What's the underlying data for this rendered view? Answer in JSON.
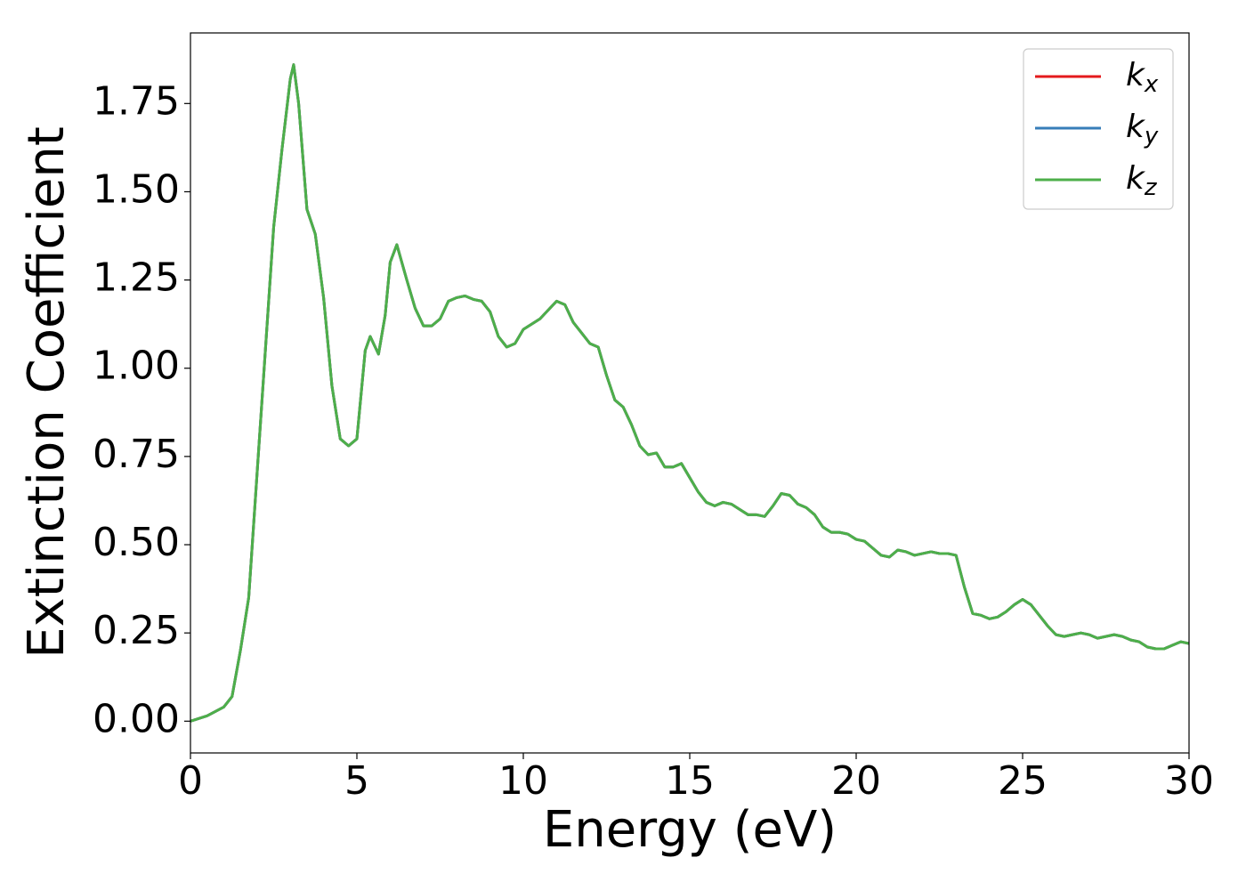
{
  "chart_data": {
    "type": "line",
    "xlabel": "Energy (eV)",
    "ylabel": "Extinction Coefficient",
    "x": [
      0,
      0.5,
      1.0,
      1.25,
      1.5,
      1.75,
      2.0,
      2.25,
      2.5,
      2.75,
      3.0,
      3.1,
      3.25,
      3.5,
      3.75,
      4.0,
      4.25,
      4.5,
      4.75,
      5.0,
      5.25,
      5.4,
      5.5,
      5.65,
      5.85,
      6.0,
      6.2,
      6.5,
      6.75,
      7.0,
      7.25,
      7.5,
      7.75,
      8.0,
      8.25,
      8.5,
      8.75,
      9.0,
      9.25,
      9.5,
      9.75,
      10.0,
      10.5,
      11.0,
      11.25,
      11.5,
      11.75,
      12.0,
      12.25,
      12.5,
      12.75,
      13.0,
      13.25,
      13.5,
      13.75,
      14.0,
      14.25,
      14.5,
      14.75,
      15.0,
      15.25,
      15.5,
      15.75,
      16.0,
      16.25,
      16.5,
      16.75,
      17.0,
      17.25,
      17.5,
      17.75,
      18.0,
      18.25,
      18.5,
      18.75,
      19.0,
      19.25,
      19.5,
      19.75,
      20.0,
      20.25,
      20.5,
      20.75,
      21.0,
      21.25,
      21.5,
      21.75,
      22.0,
      22.25,
      22.5,
      22.75,
      23.0,
      23.25,
      23.5,
      23.75,
      24.0,
      24.25,
      24.5,
      24.75,
      25.0,
      25.25,
      25.5,
      25.75,
      26.0,
      26.25,
      26.5,
      26.75,
      27.0,
      27.25,
      27.5,
      27.75,
      28.0,
      28.25,
      28.5,
      28.75,
      29.0,
      29.25,
      29.5,
      29.75,
      30.0
    ],
    "series": [
      {
        "name": "kx",
        "color": "#e41a1c",
        "values": [
          0.0,
          0.015,
          0.04,
          0.07,
          0.2,
          0.35,
          0.7,
          1.05,
          1.4,
          1.62,
          1.82,
          1.86,
          1.75,
          1.45,
          1.38,
          1.2,
          0.95,
          0.8,
          0.78,
          0.8,
          1.05,
          1.09,
          1.07,
          1.04,
          1.15,
          1.3,
          1.35,
          1.25,
          1.17,
          1.12,
          1.12,
          1.14,
          1.19,
          1.2,
          1.205,
          1.195,
          1.19,
          1.16,
          1.09,
          1.06,
          1.07,
          1.11,
          1.14,
          1.19,
          1.18,
          1.13,
          1.1,
          1.07,
          1.06,
          0.98,
          0.91,
          0.89,
          0.84,
          0.78,
          0.755,
          0.76,
          0.72,
          0.72,
          0.73,
          0.69,
          0.65,
          0.62,
          0.61,
          0.62,
          0.615,
          0.6,
          0.585,
          0.585,
          0.58,
          0.61,
          0.645,
          0.64,
          0.615,
          0.605,
          0.585,
          0.55,
          0.535,
          0.535,
          0.53,
          0.515,
          0.51,
          0.49,
          0.47,
          0.465,
          0.485,
          0.48,
          0.47,
          0.475,
          0.48,
          0.475,
          0.475,
          0.47,
          0.38,
          0.305,
          0.3,
          0.29,
          0.295,
          0.31,
          0.33,
          0.345,
          0.33,
          0.3,
          0.27,
          0.245,
          0.24,
          0.245,
          0.25,
          0.245,
          0.235,
          0.24,
          0.245,
          0.24,
          0.23,
          0.225,
          0.21,
          0.205,
          0.205,
          0.215,
          0.225,
          0.22
        ]
      },
      {
        "name": "ky",
        "color": "#377eb8",
        "values": [
          0.0,
          0.015,
          0.04,
          0.07,
          0.2,
          0.35,
          0.7,
          1.05,
          1.4,
          1.62,
          1.82,
          1.86,
          1.75,
          1.45,
          1.38,
          1.2,
          0.95,
          0.8,
          0.78,
          0.8,
          1.05,
          1.09,
          1.07,
          1.04,
          1.15,
          1.3,
          1.35,
          1.25,
          1.17,
          1.12,
          1.12,
          1.14,
          1.19,
          1.2,
          1.205,
          1.195,
          1.19,
          1.16,
          1.09,
          1.06,
          1.07,
          1.11,
          1.14,
          1.19,
          1.18,
          1.13,
          1.1,
          1.07,
          1.06,
          0.98,
          0.91,
          0.89,
          0.84,
          0.78,
          0.755,
          0.76,
          0.72,
          0.72,
          0.73,
          0.69,
          0.65,
          0.62,
          0.61,
          0.62,
          0.615,
          0.6,
          0.585,
          0.585,
          0.58,
          0.61,
          0.645,
          0.64,
          0.615,
          0.605,
          0.585,
          0.55,
          0.535,
          0.535,
          0.53,
          0.515,
          0.51,
          0.49,
          0.47,
          0.465,
          0.485,
          0.48,
          0.47,
          0.475,
          0.48,
          0.475,
          0.475,
          0.47,
          0.38,
          0.305,
          0.3,
          0.29,
          0.295,
          0.31,
          0.33,
          0.345,
          0.33,
          0.3,
          0.27,
          0.245,
          0.24,
          0.245,
          0.25,
          0.245,
          0.235,
          0.24,
          0.245,
          0.24,
          0.23,
          0.225,
          0.21,
          0.205,
          0.205,
          0.215,
          0.225,
          0.22
        ]
      },
      {
        "name": "kz",
        "color": "#4daf4a",
        "values": [
          0.0,
          0.015,
          0.04,
          0.07,
          0.2,
          0.35,
          0.7,
          1.05,
          1.4,
          1.62,
          1.82,
          1.86,
          1.75,
          1.45,
          1.38,
          1.2,
          0.95,
          0.8,
          0.78,
          0.8,
          1.05,
          1.09,
          1.07,
          1.04,
          1.15,
          1.3,
          1.35,
          1.25,
          1.17,
          1.12,
          1.12,
          1.14,
          1.19,
          1.2,
          1.205,
          1.195,
          1.19,
          1.16,
          1.09,
          1.06,
          1.07,
          1.11,
          1.14,
          1.19,
          1.18,
          1.13,
          1.1,
          1.07,
          1.06,
          0.98,
          0.91,
          0.89,
          0.84,
          0.78,
          0.755,
          0.76,
          0.72,
          0.72,
          0.73,
          0.69,
          0.65,
          0.62,
          0.61,
          0.62,
          0.615,
          0.6,
          0.585,
          0.585,
          0.58,
          0.61,
          0.645,
          0.64,
          0.615,
          0.605,
          0.585,
          0.55,
          0.535,
          0.535,
          0.53,
          0.515,
          0.51,
          0.49,
          0.47,
          0.465,
          0.485,
          0.48,
          0.47,
          0.475,
          0.48,
          0.475,
          0.475,
          0.47,
          0.38,
          0.305,
          0.3,
          0.29,
          0.295,
          0.31,
          0.33,
          0.345,
          0.33,
          0.3,
          0.27,
          0.245,
          0.24,
          0.245,
          0.25,
          0.245,
          0.235,
          0.24,
          0.245,
          0.24,
          0.23,
          0.225,
          0.21,
          0.205,
          0.205,
          0.215,
          0.225,
          0.22
        ]
      }
    ],
    "xlim": [
      0,
      30
    ],
    "xticks": [
      0,
      5,
      10,
      15,
      20,
      25,
      30
    ],
    "ylim": [
      -0.09,
      1.95
    ],
    "yticks": [
      {
        "value": 0,
        "label": "0.00"
      },
      {
        "value": 0.25,
        "label": "0.25"
      },
      {
        "value": 0.5,
        "label": "0.50"
      },
      {
        "value": 0.75,
        "label": "0.75"
      },
      {
        "value": 1,
        "label": "1.00"
      },
      {
        "value": 1.25,
        "label": "1.25"
      },
      {
        "value": 1.5,
        "label": "1.50"
      },
      {
        "value": 1.75,
        "label": "1.75"
      }
    ],
    "grid": false,
    "legend": "upper right"
  }
}
